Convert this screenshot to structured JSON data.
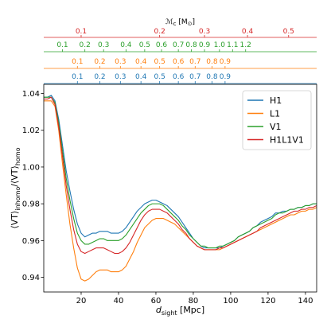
{
  "chart_data": {
    "type": "line",
    "title": "",
    "xlabel": "$d_{\\rm sight}$ [Mpc]",
    "xlabel_parts": {
      "main": "d",
      "sub": "sight",
      "rest": " [Mpc]"
    },
    "ylabel": "$\\langle VT\\rangle_{\\rm inhomo}/\\langle VT\\rangle_{\\rm homo}$",
    "ylabel_parts": {
      "a": "⟨VT⟩",
      "sub_a": "inhomo",
      "b": "/⟨VT⟩",
      "sub_b": "homo"
    },
    "xlim": [
      0,
      146
    ],
    "ylim": [
      0.932,
      1.045
    ],
    "xticks": [
      20,
      40,
      60,
      80,
      100,
      120,
      140
    ],
    "yticks": [
      0.94,
      0.96,
      0.98,
      1.0,
      1.02,
      1.04
    ],
    "ytick_labels": [
      "0.94",
      "0.96",
      "0.98",
      "1.00",
      "1.02",
      "1.04"
    ],
    "grid": false,
    "legend_position": "top-right",
    "series": [
      {
        "name": "H1",
        "color": "#1f77b4",
        "x": [
          0,
          2,
          4,
          6,
          8,
          10,
          12,
          14,
          16,
          18,
          20,
          22,
          24,
          26,
          28,
          30,
          32,
          34,
          36,
          38,
          40,
          42,
          44,
          46,
          48,
          50,
          52,
          54,
          56,
          58,
          60,
          62,
          64,
          66,
          68,
          70,
          72,
          74,
          76,
          78,
          80,
          82,
          84,
          86,
          88,
          90,
          92,
          94,
          96,
          98,
          100,
          102,
          104,
          106,
          108,
          110,
          112,
          114,
          116,
          118,
          120,
          122,
          124,
          126,
          128,
          130,
          132,
          134,
          136,
          138,
          140,
          142,
          144,
          146
        ],
        "y": [
          1.038,
          1.038,
          1.039,
          1.036,
          1.026,
          1.012,
          0.998,
          0.987,
          0.977,
          0.969,
          0.964,
          0.962,
          0.963,
          0.964,
          0.964,
          0.965,
          0.965,
          0.965,
          0.964,
          0.964,
          0.964,
          0.965,
          0.967,
          0.97,
          0.973,
          0.976,
          0.978,
          0.98,
          0.981,
          0.982,
          0.982,
          0.981,
          0.98,
          0.979,
          0.977,
          0.975,
          0.973,
          0.97,
          0.967,
          0.964,
          0.961,
          0.959,
          0.957,
          0.956,
          0.956,
          0.956,
          0.956,
          0.956,
          0.957,
          0.958,
          0.959,
          0.96,
          0.962,
          0.963,
          0.964,
          0.965,
          0.967,
          0.968,
          0.97,
          0.971,
          0.972,
          0.973,
          0.975,
          0.975,
          0.976,
          0.976,
          0.977,
          0.977,
          0.978,
          0.978,
          0.979,
          0.979,
          0.98,
          0.98
        ]
      },
      {
        "name": "L1",
        "color": "#ff7f0e",
        "x": [
          0,
          2,
          4,
          6,
          8,
          10,
          12,
          14,
          16,
          18,
          20,
          22,
          24,
          26,
          28,
          30,
          32,
          34,
          36,
          38,
          40,
          42,
          44,
          46,
          48,
          50,
          52,
          54,
          56,
          58,
          60,
          62,
          64,
          66,
          68,
          70,
          72,
          74,
          76,
          78,
          80,
          82,
          84,
          86,
          88,
          90,
          92,
          94,
          96,
          98,
          100,
          102,
          104,
          106,
          108,
          110,
          112,
          114,
          116,
          118,
          120,
          122,
          124,
          126,
          128,
          130,
          132,
          134,
          136,
          138,
          140,
          142,
          144,
          146
        ],
        "y": [
          1.036,
          1.036,
          1.036,
          1.033,
          1.02,
          1.002,
          0.985,
          0.969,
          0.956,
          0.945,
          0.939,
          0.938,
          0.939,
          0.941,
          0.943,
          0.944,
          0.944,
          0.944,
          0.943,
          0.943,
          0.943,
          0.944,
          0.946,
          0.95,
          0.954,
          0.959,
          0.963,
          0.967,
          0.969,
          0.971,
          0.972,
          0.972,
          0.972,
          0.971,
          0.97,
          0.969,
          0.967,
          0.965,
          0.963,
          0.961,
          0.959,
          0.957,
          0.956,
          0.955,
          0.955,
          0.955,
          0.955,
          0.955,
          0.956,
          0.957,
          0.958,
          0.959,
          0.96,
          0.961,
          0.962,
          0.963,
          0.964,
          0.965,
          0.966,
          0.967,
          0.968,
          0.969,
          0.97,
          0.971,
          0.972,
          0.973,
          0.974,
          0.974,
          0.975,
          0.976,
          0.976,
          0.977,
          0.977,
          0.978
        ]
      },
      {
        "name": "V1",
        "color": "#2ca02c",
        "x": [
          0,
          2,
          4,
          6,
          8,
          10,
          12,
          14,
          16,
          18,
          20,
          22,
          24,
          26,
          28,
          30,
          32,
          34,
          36,
          38,
          40,
          42,
          44,
          46,
          48,
          50,
          52,
          54,
          56,
          58,
          60,
          62,
          64,
          66,
          68,
          70,
          72,
          74,
          76,
          78,
          80,
          82,
          84,
          86,
          88,
          90,
          92,
          94,
          96,
          98,
          100,
          102,
          104,
          106,
          108,
          110,
          112,
          114,
          116,
          118,
          120,
          122,
          124,
          126,
          128,
          130,
          132,
          134,
          136,
          138,
          140,
          142,
          144,
          146
        ],
        "y": [
          1.038,
          1.038,
          1.038,
          1.035,
          1.024,
          1.009,
          0.994,
          0.982,
          0.972,
          0.964,
          0.96,
          0.958,
          0.958,
          0.959,
          0.96,
          0.961,
          0.961,
          0.96,
          0.96,
          0.96,
          0.96,
          0.961,
          0.963,
          0.966,
          0.969,
          0.972,
          0.975,
          0.977,
          0.979,
          0.98,
          0.98,
          0.98,
          0.979,
          0.977,
          0.975,
          0.973,
          0.971,
          0.968,
          0.966,
          0.963,
          0.961,
          0.959,
          0.957,
          0.957,
          0.956,
          0.956,
          0.956,
          0.957,
          0.957,
          0.958,
          0.959,
          0.96,
          0.962,
          0.963,
          0.964,
          0.965,
          0.967,
          0.968,
          0.969,
          0.97,
          0.971,
          0.972,
          0.974,
          0.975,
          0.975,
          0.976,
          0.977,
          0.977,
          0.978,
          0.978,
          0.979,
          0.979,
          0.98,
          0.98
        ]
      },
      {
        "name": "H1L1V1",
        "color": "#d62728",
        "x": [
          0,
          2,
          4,
          6,
          8,
          10,
          12,
          14,
          16,
          18,
          20,
          22,
          24,
          26,
          28,
          30,
          32,
          34,
          36,
          38,
          40,
          42,
          44,
          46,
          48,
          50,
          52,
          54,
          56,
          58,
          60,
          62,
          64,
          66,
          68,
          70,
          72,
          74,
          76,
          78,
          80,
          82,
          84,
          86,
          88,
          90,
          92,
          94,
          96,
          98,
          100,
          102,
          104,
          106,
          108,
          110,
          112,
          114,
          116,
          118,
          120,
          122,
          124,
          126,
          128,
          130,
          132,
          134,
          136,
          138,
          140,
          142,
          144,
          146
        ],
        "y": [
          1.037,
          1.037,
          1.038,
          1.034,
          1.022,
          1.006,
          0.99,
          0.977,
          0.966,
          0.958,
          0.954,
          0.953,
          0.954,
          0.955,
          0.956,
          0.956,
          0.956,
          0.955,
          0.954,
          0.953,
          0.953,
          0.954,
          0.956,
          0.959,
          0.963,
          0.967,
          0.971,
          0.974,
          0.976,
          0.977,
          0.977,
          0.977,
          0.976,
          0.975,
          0.973,
          0.971,
          0.969,
          0.966,
          0.964,
          0.961,
          0.959,
          0.957,
          0.956,
          0.955,
          0.955,
          0.955,
          0.955,
          0.956,
          0.956,
          0.957,
          0.958,
          0.959,
          0.96,
          0.961,
          0.962,
          0.963,
          0.964,
          0.965,
          0.967,
          0.968,
          0.969,
          0.97,
          0.971,
          0.972,
          0.973,
          0.974,
          0.975,
          0.976,
          0.976,
          0.977,
          0.977,
          0.978,
          0.978,
          0.979
        ]
      }
    ],
    "secondary_axes": [
      {
        "title_main": "ℳ",
        "title_sub": "c",
        "title_unit": " [M",
        "title_unit_sub": "⊙",
        "title_close": "]",
        "color": "#d62728",
        "ticks": [
          {
            "x": 20,
            "label": "0.1"
          },
          {
            "x": 62,
            "label": "0.2"
          },
          {
            "x": 86,
            "label": "0.3"
          },
          {
            "x": 109,
            "label": "0.4"
          },
          {
            "x": 131,
            "label": "0.5"
          }
        ]
      },
      {
        "color": "#2ca02c",
        "ticks": [
          {
            "x": 10,
            "label": "0.1"
          },
          {
            "x": 22,
            "label": "0.2"
          },
          {
            "x": 32,
            "label": "0.3"
          },
          {
            "x": 44,
            "label": "0.4"
          },
          {
            "x": 54,
            "label": "0.5"
          },
          {
            "x": 63,
            "label": "0.6"
          },
          {
            "x": 72,
            "label": "0.7"
          },
          {
            "x": 79,
            "label": "0.8"
          },
          {
            "x": 86,
            "label": "0.9"
          },
          {
            "x": 94,
            "label": "1.0"
          },
          {
            "x": 101,
            "label": "1.1"
          },
          {
            "x": 108,
            "label": "1.2"
          }
        ]
      },
      {
        "color": "#ff7f0e",
        "ticks": [
          {
            "x": 18,
            "label": "0.1"
          },
          {
            "x": 30,
            "label": "0.2"
          },
          {
            "x": 41,
            "label": "0.3"
          },
          {
            "x": 52,
            "label": "0.4"
          },
          {
            "x": 62,
            "label": "0.5"
          },
          {
            "x": 72,
            "label": "0.6"
          },
          {
            "x": 81,
            "label": "0.7"
          },
          {
            "x": 90,
            "label": "0.8"
          },
          {
            "x": 97,
            "label": "0.9"
          }
        ]
      },
      {
        "color": "#1f77b4",
        "ticks": [
          {
            "x": 18,
            "label": "0.1"
          },
          {
            "x": 30,
            "label": "0.2"
          },
          {
            "x": 41,
            "label": "0.3"
          },
          {
            "x": 52,
            "label": "0.4"
          },
          {
            "x": 62,
            "label": "0.5"
          },
          {
            "x": 72,
            "label": "0.6"
          },
          {
            "x": 81,
            "label": "0.7"
          },
          {
            "x": 90,
            "label": "0.8"
          },
          {
            "x": 97,
            "label": "0.9"
          }
        ]
      }
    ]
  }
}
